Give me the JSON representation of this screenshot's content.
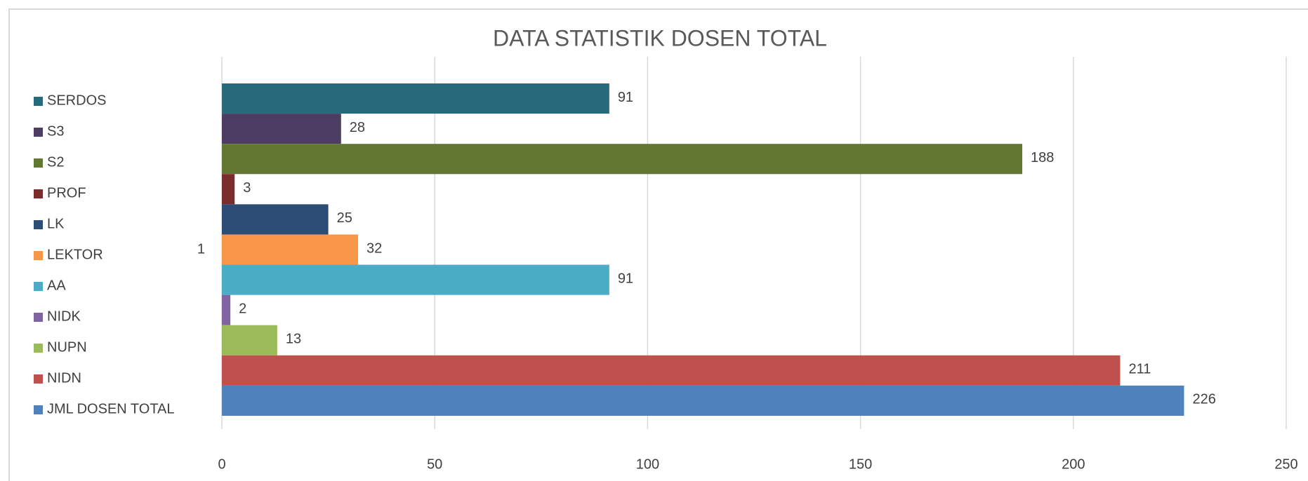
{
  "chart_data": {
    "type": "bar",
    "orientation": "horizontal",
    "title": "DATA STATISTIK DOSEN TOTAL",
    "categories": [
      "1"
    ],
    "series": [
      {
        "name": "SERDOS",
        "color": "#276a7c",
        "values": [
          91
        ]
      },
      {
        "name": "S3",
        "color": "#4e3d63",
        "values": [
          28
        ]
      },
      {
        "name": "S2",
        "color": "#627731",
        "values": [
          188
        ]
      },
      {
        "name": "PROF",
        "color": "#7b2c2c",
        "values": [
          3
        ]
      },
      {
        "name": "LK",
        "color": "#2c4d75",
        "values": [
          25
        ]
      },
      {
        "name": "LEKTOR",
        "color": "#f79646",
        "values": [
          32
        ]
      },
      {
        "name": "AA",
        "color": "#4bacc6",
        "values": [
          91
        ]
      },
      {
        "name": "NIDK",
        "color": "#8064a2",
        "values": [
          2
        ]
      },
      {
        "name": "NUPN",
        "color": "#9bbb59",
        "values": [
          13
        ]
      },
      {
        "name": "NIDN",
        "color": "#c0504d",
        "values": [
          211
        ]
      },
      {
        "name": "JML DOSEN TOTAL",
        "color": "#4f81bd",
        "values": [
          226
        ]
      }
    ],
    "xlim": [
      0,
      250
    ],
    "xticks": [
      0,
      50,
      100,
      150,
      200,
      250
    ],
    "grid": true,
    "legend": "left"
  }
}
